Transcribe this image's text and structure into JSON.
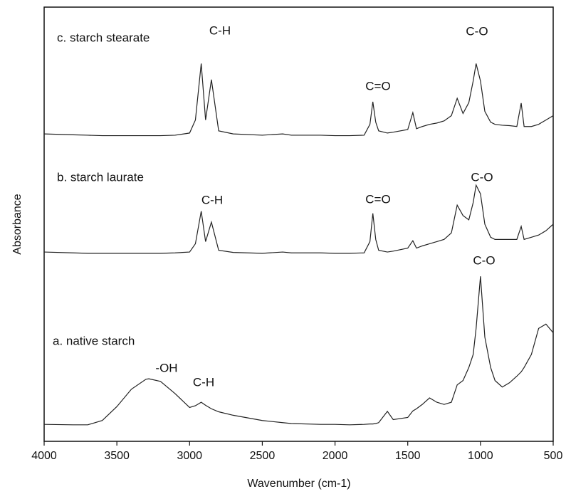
{
  "chart_data": {
    "type": "line",
    "x_label": "Wavenumber (cm-1)",
    "y_label": "Absorbance",
    "xlim": [
      4000,
      500
    ],
    "xticks": [
      4000,
      3500,
      3000,
      2500,
      2000,
      1500,
      1000,
      500
    ],
    "ylim": [
      0,
      100
    ],
    "x": [
      4000,
      3800,
      3700,
      3600,
      3500,
      3400,
      3300,
      3280,
      3200,
      3100,
      3000,
      2960,
      2920,
      2890,
      2850,
      2800,
      2700,
      2500,
      2360,
      2300,
      2100,
      2000,
      1900,
      1800,
      1760,
      1740,
      1720,
      1700,
      1640,
      1600,
      1500,
      1465,
      1440,
      1400,
      1350,
      1300,
      1250,
      1200,
      1160,
      1120,
      1080,
      1050,
      1030,
      1000,
      970,
      930,
      900,
      850,
      800,
      750,
      720,
      700,
      650,
      600,
      550,
      500
    ],
    "series": [
      {
        "name": "c. starch stearate",
        "color": "#222222",
        "values": [
          70.8,
          70.6,
          70.5,
          70.4,
          70.4,
          70.4,
          70.4,
          70.4,
          70.4,
          70.5,
          71,
          74,
          87,
          74,
          83.3,
          71.5,
          70.8,
          70.5,
          70.8,
          70.5,
          70.5,
          70.4,
          70.4,
          70.5,
          73,
          78.2,
          73.5,
          71.5,
          71,
          71.2,
          71.8,
          75.7,
          72,
          72.5,
          73,
          73.3,
          73.8,
          75,
          79,
          75.5,
          78,
          83,
          87,
          83,
          76,
          73.5,
          73,
          72.8,
          72.7,
          72.5,
          77.9,
          72.5,
          72.5,
          73,
          74,
          75
        ]
      },
      {
        "name": "b. starch laurate",
        "color": "#222222",
        "values": [
          43.6,
          43.4,
          43.3,
          43.3,
          43.3,
          43.3,
          43.3,
          43.3,
          43.3,
          43.4,
          43.6,
          45.5,
          53,
          46,
          50.5,
          44,
          43.5,
          43.3,
          43.6,
          43.4,
          43.4,
          43.3,
          43.3,
          43.4,
          46,
          52.5,
          46.5,
          44,
          43.6,
          43.8,
          44.5,
          46.2,
          44.5,
          45,
          45.5,
          46,
          46.5,
          48,
          54.4,
          52,
          51,
          55,
          59,
          57,
          50,
          47,
          46.5,
          46.5,
          46.5,
          46.5,
          49.5,
          46.5,
          47,
          47.5,
          48.5,
          50
        ]
      },
      {
        "name": "a. native starch",
        "color": "#222222",
        "values": [
          3.9,
          3.8,
          3.8,
          4.8,
          8,
          12,
          14.3,
          14.4,
          13.8,
          11,
          7.8,
          8.2,
          9,
          8.3,
          7.5,
          6.8,
          6,
          4.8,
          4.3,
          4.1,
          3.9,
          3.9,
          3.8,
          3.9,
          4,
          4,
          4.1,
          4.3,
          6.9,
          5,
          5.5,
          7,
          7.5,
          8.5,
          10,
          9,
          8.5,
          9,
          13,
          14,
          17,
          20,
          26,
          38,
          24,
          17,
          14,
          12.5,
          13.5,
          15,
          16,
          17,
          20,
          26,
          27,
          25
        ]
      }
    ],
    "annotations": [
      "C-H",
      "C=O",
      "C-O",
      "C-H",
      "C=O",
      "C-O",
      "C-O",
      "-OH",
      "C-H"
    ]
  }
}
